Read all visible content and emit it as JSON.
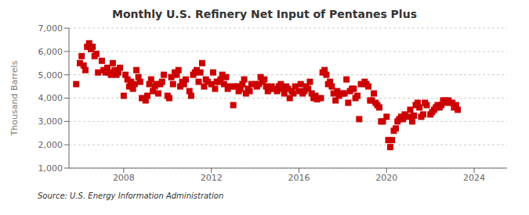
{
  "chart_data": {
    "type": "scatter",
    "title": "Monthly U.S. Refinery Net Input of Pentanes Plus",
    "ylabel": "Thousand Barrels",
    "annotations": [
      "Source: U.S. Energy Information Administration"
    ],
    "color": "#cc0000",
    "marker": "square",
    "grid": "y",
    "xlim": [
      2005.5,
      2025.5
    ],
    "xticks": [
      2008,
      2012,
      2016,
      2020,
      2024
    ],
    "ylim": [
      1000,
      7000
    ],
    "yticks": [
      {
        "value": 1000,
        "label": "1,000"
      },
      {
        "value": 2000,
        "label": "2,000"
      },
      {
        "value": 3000,
        "label": "3,000"
      },
      {
        "value": 4000,
        "label": "4,000"
      },
      {
        "value": 5000,
        "label": "5,000"
      },
      {
        "value": 6000,
        "label": "6,000"
      },
      {
        "value": 7000,
        "label": "7,000"
      }
    ],
    "x": [
      2005.83,
      2006.0,
      2006.08,
      2006.17,
      2006.25,
      2006.33,
      2006.42,
      2006.5,
      2006.58,
      2006.67,
      2006.75,
      2006.83,
      2007.0,
      2007.08,
      2007.17,
      2007.25,
      2007.33,
      2007.42,
      2007.5,
      2007.58,
      2007.67,
      2007.75,
      2007.83,
      2008.0,
      2008.08,
      2008.17,
      2008.25,
      2008.33,
      2008.42,
      2008.5,
      2008.58,
      2008.67,
      2008.75,
      2008.83,
      2009.0,
      2009.08,
      2009.17,
      2009.25,
      2009.33,
      2009.42,
      2009.5,
      2009.58,
      2009.67,
      2009.75,
      2009.83,
      2010.0,
      2010.08,
      2010.17,
      2010.25,
      2010.33,
      2010.42,
      2010.5,
      2010.58,
      2010.67,
      2010.75,
      2010.83,
      2011.0,
      2011.08,
      2011.17,
      2011.25,
      2011.33,
      2011.42,
      2011.5,
      2011.58,
      2011.67,
      2011.75,
      2011.83,
      2012.0,
      2012.08,
      2012.17,
      2012.25,
      2012.33,
      2012.42,
      2012.5,
      2012.58,
      2012.67,
      2012.75,
      2012.83,
      2013.0,
      2013.08,
      2013.17,
      2013.25,
      2013.33,
      2013.42,
      2013.5,
      2013.58,
      2013.67,
      2013.75,
      2013.83,
      2014.0,
      2014.08,
      2014.17,
      2014.25,
      2014.33,
      2014.42,
      2014.5,
      2014.58,
      2014.67,
      2014.75,
      2014.83,
      2015.0,
      2015.08,
      2015.17,
      2015.25,
      2015.33,
      2015.42,
      2015.5,
      2015.58,
      2015.67,
      2015.75,
      2015.83,
      2016.0,
      2016.08,
      2016.17,
      2016.25,
      2016.33,
      2016.42,
      2016.5,
      2016.58,
      2016.67,
      2016.75,
      2016.83,
      2017.0,
      2017.08,
      2017.17,
      2017.25,
      2017.33,
      2017.42,
      2017.5,
      2017.58,
      2017.67,
      2017.75,
      2017.83,
      2018.0,
      2018.08,
      2018.17,
      2018.25,
      2018.33,
      2018.42,
      2018.5,
      2018.58,
      2018.67,
      2018.75,
      2018.83,
      2019.0,
      2019.08,
      2019.17,
      2019.25,
      2019.33,
      2019.42,
      2019.5,
      2019.58,
      2019.67,
      2019.75,
      2019.83,
      2020.0,
      2020.08,
      2020.17,
      2020.25,
      2020.33,
      2020.42,
      2020.5,
      2020.58,
      2020.67,
      2020.75,
      2020.83,
      2021.0,
      2021.08,
      2021.17,
      2021.25,
      2021.33,
      2021.42,
      2021.5,
      2021.58,
      2021.67,
      2021.75,
      2021.83,
      2022.0,
      2022.08,
      2022.17,
      2022.25,
      2022.33,
      2022.42,
      2022.5,
      2022.58,
      2022.67,
      2022.75,
      2022.83,
      2023.0,
      2023.08,
      2023.17,
      2023.25
    ],
    "values": [
      4600,
      5500,
      5800,
      5400,
      5200,
      6200,
      6350,
      6100,
      6200,
      5800,
      5900,
      5100,
      5600,
      5200,
      5100,
      5300,
      5100,
      5000,
      5500,
      5200,
      5000,
      5100,
      5300,
      4100,
      5000,
      4800,
      4500,
      4700,
      4400,
      4600,
      5200,
      4900,
      4700,
      4000,
      3900,
      4100,
      4600,
      4800,
      4300,
      4500,
      4600,
      4200,
      4600,
      4700,
      5000,
      4100,
      4000,
      4900,
      4600,
      5100,
      5000,
      5200,
      4500,
      4700,
      4600,
      4800,
      4300,
      4100,
      5000,
      5100,
      5200,
      4700,
      5100,
      5500,
      4500,
      4800,
      4700,
      4600,
      5100,
      4400,
      4700,
      4700,
      4800,
      5000,
      4600,
      4900,
      4400,
      4500,
      3700,
      4500,
      4500,
      4300,
      4400,
      4600,
      4800,
      4200,
      4400,
      4300,
      4600,
      4600,
      4500,
      4600,
      4900,
      4700,
      4800,
      4500,
      4300,
      4400,
      4500,
      4400,
      4300,
      4500,
      4600,
      4400,
      4200,
      4500,
      4400,
      4000,
      4300,
      4200,
      4500,
      4300,
      4600,
      4200,
      4300,
      4500,
      4400,
      4700,
      4200,
      4000,
      4100,
      3950,
      4000,
      5100,
      5200,
      5000,
      4600,
      4700,
      4500,
      4200,
      3900,
      4300,
      4100,
      4200,
      4200,
      4800,
      3800,
      4300,
      4400,
      4400,
      4000,
      4100,
      3100,
      4600,
      4700,
      4600,
      4500,
      3900,
      3900,
      4200,
      3800,
      3700,
      3600,
      3000,
      3000,
      3200,
      2200,
      1900,
      2200,
      2600,
      2700,
      3000,
      3100,
      3200,
      3100,
      3300,
      3200,
      3500,
      3000,
      3250,
      3700,
      3800,
      3600,
      3200,
      3300,
      3800,
      3700,
      3300,
      3400,
      3500,
      3600,
      3700,
      3600,
      3700,
      3900,
      3900,
      3800,
      3900,
      3800,
      3600,
      3700,
      3500
    ]
  }
}
